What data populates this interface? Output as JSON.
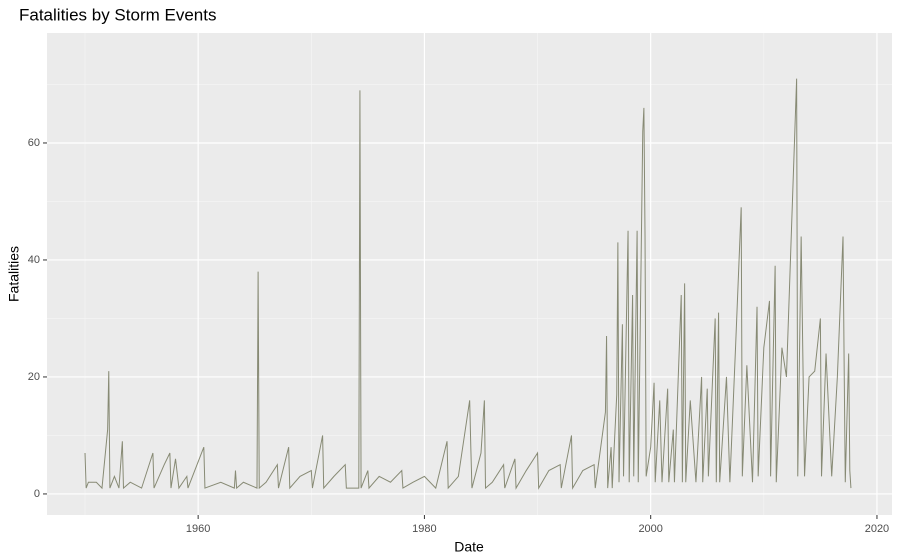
{
  "chart_data": {
    "type": "line",
    "title": "Fatalities by Storm Events",
    "x_label": "Date",
    "y_label": "Fatalities",
    "color": "#878a74",
    "grid": true,
    "xlim": [
      1946.64,
      2021.33
    ],
    "ylim": [
      -3.6,
      78.8
    ],
    "xticks": [
      1960,
      1980,
      2000,
      2020
    ],
    "yticks": [
      0,
      20,
      40,
      60
    ],
    "x_minor_grid": [
      1950,
      1970,
      1990,
      2010
    ],
    "y_minor_grid": [
      10,
      30,
      50,
      70
    ],
    "series": [
      {
        "name": "Fatalities",
        "color": "#878a74",
        "x": [
          1950.0,
          1950.1,
          1950.3,
          1951.0,
          1951.5,
          1952.0,
          1952.1,
          1952.2,
          1952.6,
          1953.0,
          1953.3,
          1953.4,
          1954.0,
          1955.0,
          1956.0,
          1956.1,
          1957.0,
          1957.5,
          1957.6,
          1958.0,
          1958.3,
          1959.0,
          1959.1,
          1960.5,
          1960.6,
          1962.0,
          1963.2,
          1963.3,
          1963.4,
          1964.0,
          1965.2,
          1965.3,
          1965.4,
          1966.0,
          1967.0,
          1967.1,
          1968.0,
          1968.1,
          1969.0,
          1970.0,
          1970.1,
          1971.0,
          1971.1,
          1972.0,
          1973.0,
          1973.1,
          1974.2,
          1974.3,
          1974.4,
          1975.0,
          1975.1,
          1976.0,
          1977.0,
          1978.0,
          1978.1,
          1979.0,
          1980.0,
          1981.0,
          1982.0,
          1982.1,
          1983.0,
          1984.0,
          1984.1,
          1984.2,
          1985.0,
          1985.3,
          1985.4,
          1986.0,
          1987.0,
          1987.1,
          1988.0,
          1988.1,
          1989.0,
          1990.0,
          1990.1,
          1991.0,
          1992.0,
          1992.1,
          1993.0,
          1993.1,
          1994.0,
          1995.0,
          1995.1,
          1996.0,
          1996.1,
          1996.2,
          1996.5,
          1996.6,
          1997.0,
          1997.1,
          1997.2,
          1997.5,
          1997.6,
          1998.0,
          1998.1,
          1998.4,
          1998.5,
          1998.8,
          1998.9,
          1999.3,
          1999.4,
          1999.5,
          1999.6,
          2000.0,
          2000.3,
          2000.4,
          2000.8,
          2001.0,
          2001.5,
          2001.6,
          2002.0,
          2002.1,
          2002.7,
          2002.8,
          2003.0,
          2003.1,
          2003.5,
          2004.0,
          2004.5,
          2004.6,
          2005.0,
          2005.1,
          2005.7,
          2005.8,
          2006.0,
          2006.1,
          2006.7,
          2007.0,
          2007.5,
          2008.0,
          2008.1,
          2008.5,
          2009.0,
          2009.4,
          2009.5,
          2010.0,
          2010.5,
          2010.6,
          2011.0,
          2011.1,
          2011.6,
          2012.0,
          2012.9,
          2013.0,
          2013.3,
          2013.6,
          2014.0,
          2014.5,
          2015.0,
          2015.1,
          2015.5,
          2016.0,
          2016.5,
          2017.0,
          2017.1,
          2017.2,
          2017.5,
          2017.6,
          2017.7
        ],
        "values": [
          7,
          1,
          2,
          2,
          1,
          11,
          21,
          1,
          3,
          1,
          9,
          1,
          2,
          1,
          7,
          1,
          5,
          7,
          1,
          6,
          1,
          3,
          1,
          8,
          1,
          2,
          1,
          4,
          1,
          2,
          1,
          38,
          1,
          2,
          5,
          1,
          8,
          1,
          3,
          4,
          1,
          10,
          1,
          3,
          5,
          1,
          1,
          69,
          1,
          4,
          1,
          3,
          2,
          4,
          1,
          2,
          3,
          1,
          9,
          1,
          3,
          16,
          8,
          1,
          7,
          16,
          1,
          2,
          5,
          1,
          6,
          1,
          4,
          7,
          1,
          4,
          5,
          1,
          10,
          1,
          4,
          5,
          1,
          14,
          27,
          1,
          8,
          1,
          17,
          43,
          2,
          29,
          3,
          45,
          2,
          34,
          3,
          45,
          2,
          62,
          66,
          44,
          3,
          8,
          19,
          2,
          16,
          2,
          18,
          2,
          11,
          2,
          34,
          2,
          36,
          2,
          16,
          2,
          20,
          2,
          18,
          3,
          30,
          2,
          31,
          2,
          20,
          2,
          25,
          49,
          3,
          22,
          2,
          32,
          3,
          25,
          33,
          3,
          39,
          2,
          25,
          20,
          71,
          3,
          44,
          3,
          20,
          21,
          30,
          3,
          24,
          3,
          20,
          44,
          22,
          2,
          24,
          4,
          1
        ]
      }
    ]
  }
}
